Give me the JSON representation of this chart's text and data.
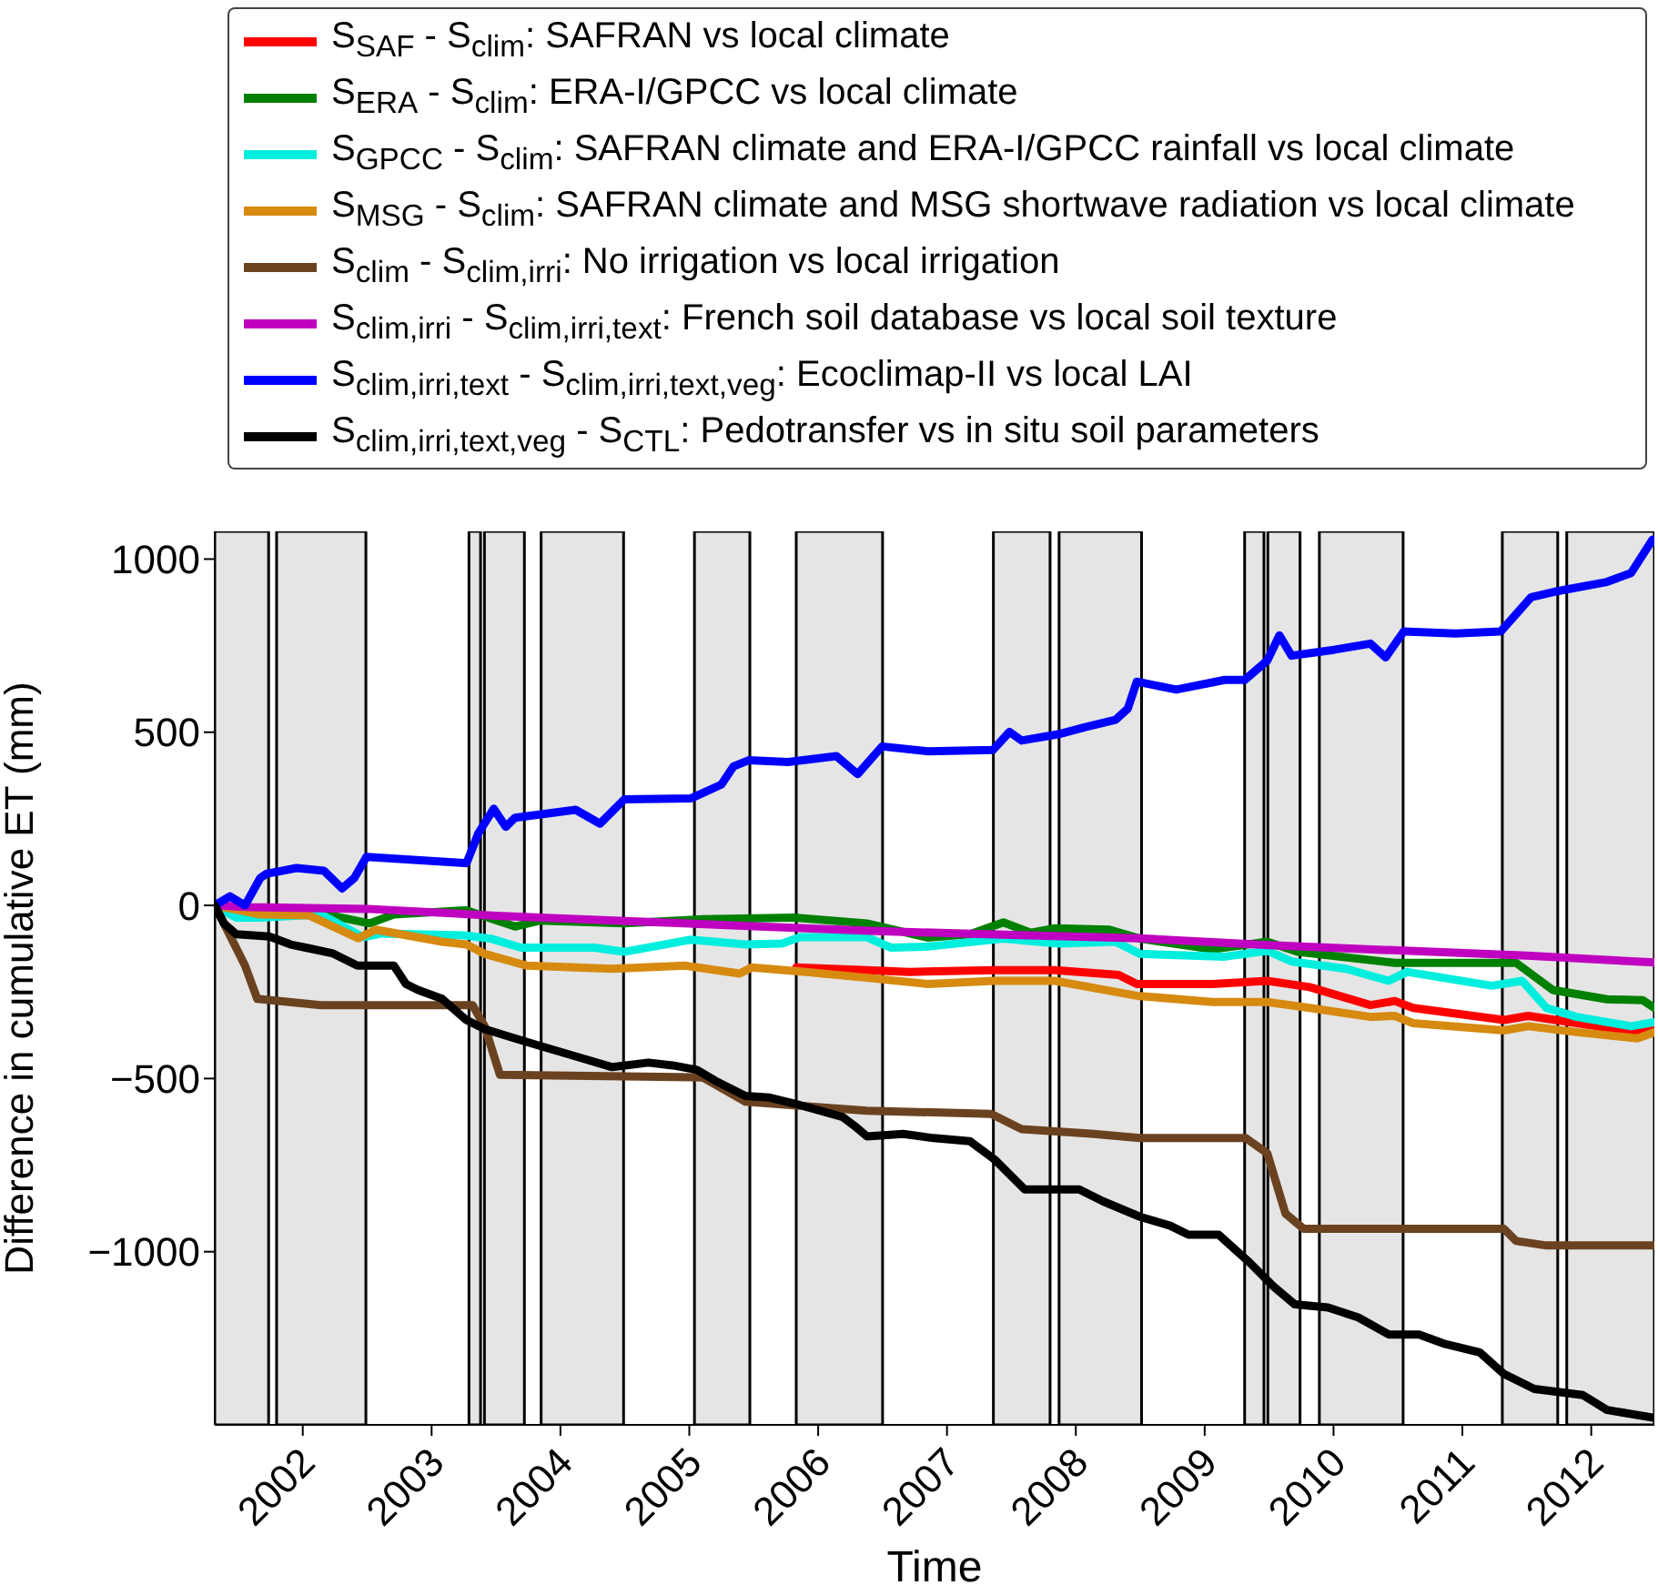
{
  "chart_data": {
    "type": "line",
    "xlabel": "Time",
    "ylabel": "Difference in cumulative ET (mm)",
    "xlim": [
      2001.317,
      2012.49
    ],
    "xticks": [
      2002,
      2003,
      2004,
      2005,
      2006,
      2007,
      2008,
      2009,
      2010,
      2011,
      2012
    ],
    "ylim": [
      -1500,
      1080
    ],
    "yticks": [
      -1000,
      -500,
      0,
      500,
      1000
    ],
    "grid": false,
    "legend": "top",
    "marker": "none",
    "line_style": "solid",
    "series": [
      {
        "name": "S$_{SAF}$ - S$_{clim}$: SAFRAN vs local climate",
        "color": "#ff0000",
        "x": [
          2005.83,
          2006.378,
          2006.708,
          2007.367,
          2007.838,
          2008.332,
          2008.473,
          2009.062,
          2009.486,
          2009.815,
          2010.286,
          2010.475,
          2010.617,
          2011.323,
          2011.511,
          2011.888,
          2012.359,
          2012.49
        ],
        "values": [
          -179,
          -187,
          -192,
          -187,
          -187,
          -201,
          -227,
          -227,
          -218,
          -236,
          -288,
          -276,
          -296,
          -331,
          -319,
          -340,
          -366,
          -340
        ]
      },
      {
        "name": "S$_{ERA}$ - S$_{clim}$: ERA-I/GPCC vs local climate",
        "color": "#008000",
        "x": [
          2001.317,
          2002.141,
          2002.518,
          2002.707,
          2003.27,
          2003.647,
          2003.836,
          2004.495,
          2005.107,
          2005.813,
          2006.378,
          2006.849,
          2007.179,
          2007.438,
          2007.65,
          2007.838,
          2008.26,
          2008.497,
          2009.062,
          2009.486,
          2009.72,
          2010.475,
          2011.417,
          2011.7,
          2012.122,
          2012.4,
          2012.49
        ],
        "values": [
          0,
          -23,
          -52,
          -26,
          -14,
          -61,
          -44,
          -52,
          -40,
          -35,
          -52,
          -93,
          -83,
          -49,
          -79,
          -66,
          -70,
          -96,
          -127,
          -105,
          -134,
          -166,
          -166,
          -244,
          -271,
          -274,
          -296
        ]
      },
      {
        "name": "S$_{GPCC}$ - S$_{clim}$: SAFRAN climate and ERA-I/GPCC rainfall vs local climate",
        "color": "#00eedd",
        "x": [
          2001.317,
          2001.482,
          2001.67,
          2002.141,
          2002.47,
          2002.613,
          2003.27,
          2003.459,
          2003.694,
          2004.26,
          2004.495,
          2005.013,
          2005.436,
          2005.719,
          2005.86,
          2006.378,
          2006.566,
          2006.849,
          2007.438,
          2007.862,
          2008.308,
          2008.497,
          2009.156,
          2009.486,
          2009.674,
          2010.097,
          2010.428,
          2010.57,
          2011.228,
          2011.464,
          2011.652,
          2011.888,
          2012.31,
          2012.49
        ],
        "values": [
          0,
          -35,
          -35,
          -26,
          -92,
          -81,
          -87,
          -96,
          -122,
          -122,
          -134,
          -99,
          -113,
          -110,
          -92,
          -92,
          -122,
          -119,
          -96,
          -110,
          -105,
          -140,
          -148,
          -131,
          -162,
          -183,
          -218,
          -192,
          -232,
          -218,
          -296,
          -322,
          -349,
          -337
        ]
      },
      {
        "name": "S$_{MSG}$ - S$_{clim}$: SAFRAN climate and MSG shortwave radiation vs local climate",
        "color": "#d68a10",
        "x": [
          2001.317,
          2001.67,
          2002.05,
          2002.43,
          2002.566,
          2003.082,
          2003.27,
          2003.412,
          2003.741,
          2004.401,
          2004.966,
          2005.39,
          2005.484,
          2005.907,
          2006.378,
          2006.849,
          2007.367,
          2007.838,
          2008.473,
          2009.062,
          2009.486,
          2009.815,
          2010.286,
          2010.475,
          2010.617,
          2011.323,
          2011.511,
          2011.888,
          2012.359,
          2012.49
        ],
        "values": [
          0,
          -26,
          -29,
          -95,
          -70,
          -105,
          -113,
          -140,
          -174,
          -183,
          -174,
          -197,
          -179,
          -192,
          -209,
          -227,
          -218,
          -218,
          -261,
          -279,
          -279,
          -296,
          -322,
          -319,
          -340,
          -361,
          -349,
          -366,
          -384,
          -366
        ]
      },
      {
        "name": "S$_{clim}$ - S$_{clim,irri}$: No irrigation vs local irrigation",
        "color": "#6b4220",
        "x": [
          2001.317,
          2001.435,
          2001.552,
          2001.647,
          2002.141,
          2003.318,
          2003.412,
          2003.53,
          2005.107,
          2005.436,
          2006.378,
          2007.343,
          2007.579,
          2008.12,
          2008.497,
          2009.32,
          2009.486,
          2009.627,
          2009.768,
          2011.323,
          2011.417,
          2011.652,
          2012.49
        ],
        "values": [
          0,
          -87,
          -174,
          -270,
          -288,
          -288,
          -349,
          -489,
          -497,
          -567,
          -593,
          -602,
          -646,
          -659,
          -672,
          -672,
          -716,
          -890,
          -934,
          -934,
          -969,
          -982,
          -982
        ]
      },
      {
        "name": "S$_{clim,irri}$ - S$_{clim,irri,text}$: French soil database vs local soil texture",
        "color": "#c000c0",
        "x": [
          2001.317,
          2001.6,
          2002.5,
          2003.5,
          2004.5,
          2005.5,
          2006.5,
          2007.5,
          2008.5,
          2009.5,
          2010.5,
          2011.5,
          2012.49
        ],
        "values": [
          0,
          -5,
          -10,
          -30,
          -45,
          -60,
          -75,
          -85,
          -95,
          -115,
          -130,
          -145,
          -165
        ]
      },
      {
        "name": "S$_{clim,irri,text}$ - S$_{clim,irri,text,veg}$: Ecoclimap-II vs local LAI",
        "color": "#0000ff",
        "x": [
          2001.317,
          2001.435,
          2001.552,
          2001.67,
          2001.717,
          2001.952,
          2002.164,
          2002.306,
          2002.4,
          2002.494,
          2003.271,
          2003.364,
          2003.482,
          2003.576,
          2003.647,
          2004.118,
          2004.307,
          2004.495,
          2005.013,
          2005.249,
          2005.342,
          2005.46,
          2005.765,
          2006.142,
          2006.307,
          2006.496,
          2006.849,
          2007.357,
          2007.485,
          2007.579,
          2007.862,
          2008.073,
          2008.308,
          2008.403,
          2008.473,
          2008.78,
          2009.156,
          2009.311,
          2009.486,
          2009.58,
          2009.674,
          2010.003,
          2010.286,
          2010.404,
          2010.545,
          2010.945,
          2011.298,
          2011.534,
          2011.746,
          2012.122,
          2012.31,
          2012.475
        ],
        "values": [
          0,
          26,
          0,
          79,
          91,
          108,
          100,
          49,
          79,
          140,
          122,
          209,
          279,
          227,
          253,
          276,
          236,
          306,
          309,
          349,
          401,
          419,
          414,
          431,
          379,
          459,
          445,
          449,
          501,
          476,
          494,
          515,
          536,
          568,
          646,
          623,
          651,
          651,
          707,
          780,
          721,
          738,
          756,
          716,
          791,
          785,
          791,
          890,
          908,
          934,
          960,
          1056
        ]
      },
      {
        "name": "S$_{clim,irri,text,veg}$ - S$_{CTL}$: Pedotransfer vs in situ soil parameters",
        "color": "#000000",
        "x": [
          2001.317,
          2001.388,
          2001.482,
          2001.741,
          2001.906,
          2002.023,
          2002.235,
          2002.424,
          2002.707,
          2002.801,
          2002.894,
          2003.082,
          2003.27,
          2003.412,
          2003.647,
          2003.836,
          2004.118,
          2004.401,
          2004.683,
          2004.871,
          2005.06,
          2005.2,
          2005.436,
          2005.624,
          2005.813,
          2006.19,
          2006.284,
          2006.378,
          2006.66,
          2006.896,
          2007.179,
          2007.367,
          2007.602,
          2008.026,
          2008.214,
          2008.497,
          2008.732,
          2008.874,
          2009.109,
          2009.345,
          2009.533,
          2009.698,
          2009.957,
          2010.193,
          2010.428,
          2010.664,
          2010.853,
          2011.135,
          2011.323,
          2011.558,
          2011.935,
          2012.123,
          2012.49
        ],
        "values": [
          0,
          -52,
          -83,
          -90,
          -113,
          -122,
          -139,
          -174,
          -174,
          -227,
          -244,
          -270,
          -331,
          -357,
          -384,
          -405,
          -436,
          -467,
          -454,
          -462,
          -475,
          -506,
          -550,
          -555,
          -572,
          -611,
          -637,
          -667,
          -660,
          -672,
          -681,
          -733,
          -820,
          -820,
          -855,
          -899,
          -925,
          -951,
          -951,
          -1030,
          -1100,
          -1152,
          -1161,
          -1190,
          -1239,
          -1239,
          -1265,
          -1291,
          -1353,
          -1396,
          -1414,
          -1457,
          -1480
        ]
      }
    ],
    "bands": [
      {
        "axis": "x",
        "from": 2001.317,
        "to": 2001.735,
        "color": "#e5e5e5"
      },
      {
        "axis": "x",
        "from": 2001.797,
        "to": 2002.49,
        "color": "#e5e5e5"
      },
      {
        "axis": "x",
        "from": 2003.29,
        "to": 2003.38,
        "color": "#e5e5e5"
      },
      {
        "axis": "x",
        "from": 2003.41,
        "to": 2003.72,
        "color": "#e5e5e5"
      },
      {
        "axis": "x",
        "from": 2003.85,
        "to": 2004.49,
        "color": "#e5e5e5"
      },
      {
        "axis": "x",
        "from": 2005.04,
        "to": 2005.47,
        "color": "#e5e5e5"
      },
      {
        "axis": "x",
        "from": 2005.83,
        "to": 2006.5,
        "color": "#e5e5e5"
      },
      {
        "axis": "x",
        "from": 2007.36,
        "to": 2007.8,
        "color": "#e5e5e5"
      },
      {
        "axis": "x",
        "from": 2007.87,
        "to": 2008.51,
        "color": "#e5e5e5"
      },
      {
        "axis": "x",
        "from": 2009.31,
        "to": 2009.46,
        "color": "#e5e5e5"
      },
      {
        "axis": "x",
        "from": 2009.49,
        "to": 2009.74,
        "color": "#e5e5e5"
      },
      {
        "axis": "x",
        "from": 2009.89,
        "to": 2010.54,
        "color": "#e5e5e5"
      },
      {
        "axis": "x",
        "from": 2011.31,
        "to": 2011.74,
        "color": "#e5e5e5"
      },
      {
        "axis": "x",
        "from": 2011.81,
        "to": 2012.49,
        "color": "#e5e5e5"
      }
    ]
  }
}
